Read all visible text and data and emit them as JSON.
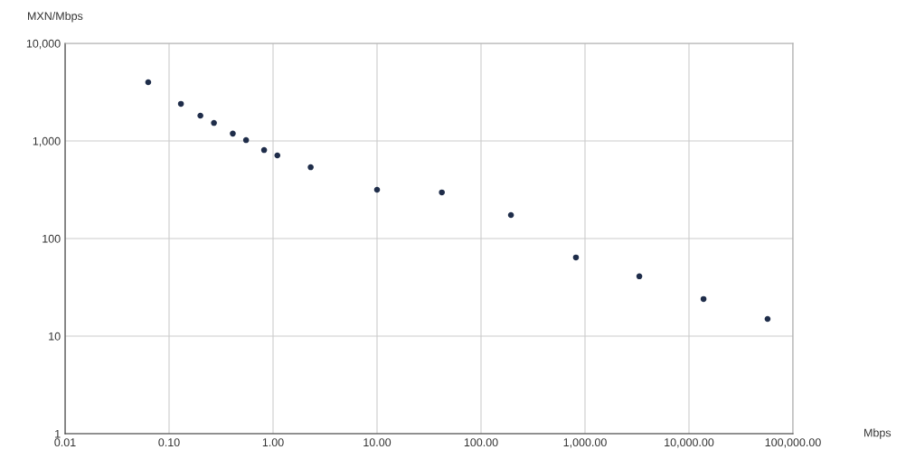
{
  "chart_data": {
    "type": "scatter",
    "xlabel": "Mbps",
    "ylabel": "MXN/Mbps",
    "log": "xy",
    "grid": true,
    "marker": "circle",
    "legend": false,
    "x": [
      0.063,
      0.13,
      0.2,
      0.27,
      0.41,
      0.55,
      0.82,
      1.1,
      2.3,
      10,
      42,
      194,
      818,
      3330,
      13800,
      57000
    ],
    "series": [
      {
        "color": "#1f2d4a",
        "values": [
          4000,
          2400,
          1815,
          1530,
          1190,
          1020,
          807,
          711,
          538,
          316,
          297,
          174,
          64,
          41,
          24,
          15
        ]
      }
    ],
    "xlim": [
      0.01,
      100000
    ],
    "xticks": [
      {
        "value": 0.01,
        "label": "0.01"
      },
      {
        "value": 0.1,
        "label": "0.10"
      },
      {
        "value": 1,
        "label": "1.00"
      },
      {
        "value": 10,
        "label": "10.00"
      },
      {
        "value": 100,
        "label": "100.00"
      },
      {
        "value": 1000,
        "label": "1,000.00"
      },
      {
        "value": 10000,
        "label": "10,000.00"
      },
      {
        "value": 100000,
        "label": "100,000.00"
      }
    ],
    "ylim": [
      1,
      10000
    ],
    "yticks": [
      {
        "value": 1,
        "label": "1"
      },
      {
        "value": 10,
        "label": "10"
      },
      {
        "value": 100,
        "label": "100"
      },
      {
        "value": 1000,
        "label": "1,000"
      },
      {
        "value": 10000,
        "label": "10,000"
      }
    ]
  }
}
